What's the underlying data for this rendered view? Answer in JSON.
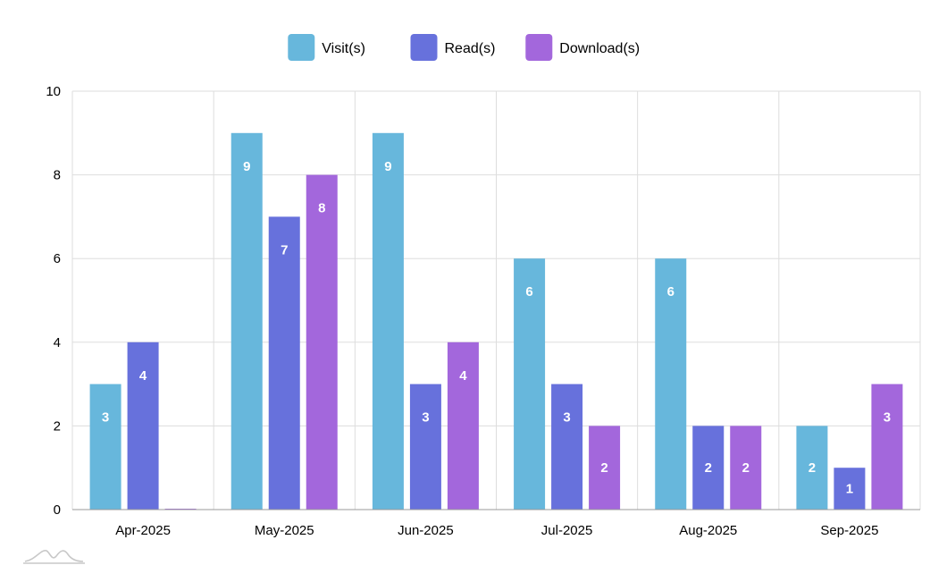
{
  "chart_data": {
    "type": "bar",
    "categories": [
      "Apr-2025",
      "May-2025",
      "Jun-2025",
      "Jul-2025",
      "Aug-2025",
      "Sep-2025"
    ],
    "series": [
      {
        "name": "Visit(s)",
        "color": "#67b7dc",
        "values": [
          3,
          9,
          9,
          6,
          6,
          2
        ]
      },
      {
        "name": "Read(s)",
        "color": "#6771dc",
        "values": [
          4,
          7,
          3,
          3,
          2,
          1
        ]
      },
      {
        "name": "Download(s)",
        "color": "#a367dc",
        "values": [
          0,
          8,
          4,
          2,
          2,
          3
        ]
      }
    ],
    "ylim": [
      0,
      10
    ],
    "yticks": [
      0,
      2,
      4,
      6,
      8,
      10
    ],
    "grid": true,
    "legend": "top-center",
    "title": "",
    "xlabel": "",
    "ylabel": ""
  },
  "colors": {
    "grid": "#dddddd",
    "axis": "#999999",
    "label_on_bar": "#ffffff"
  },
  "watermark": {
    "icon": "amcharts-logo-icon"
  }
}
